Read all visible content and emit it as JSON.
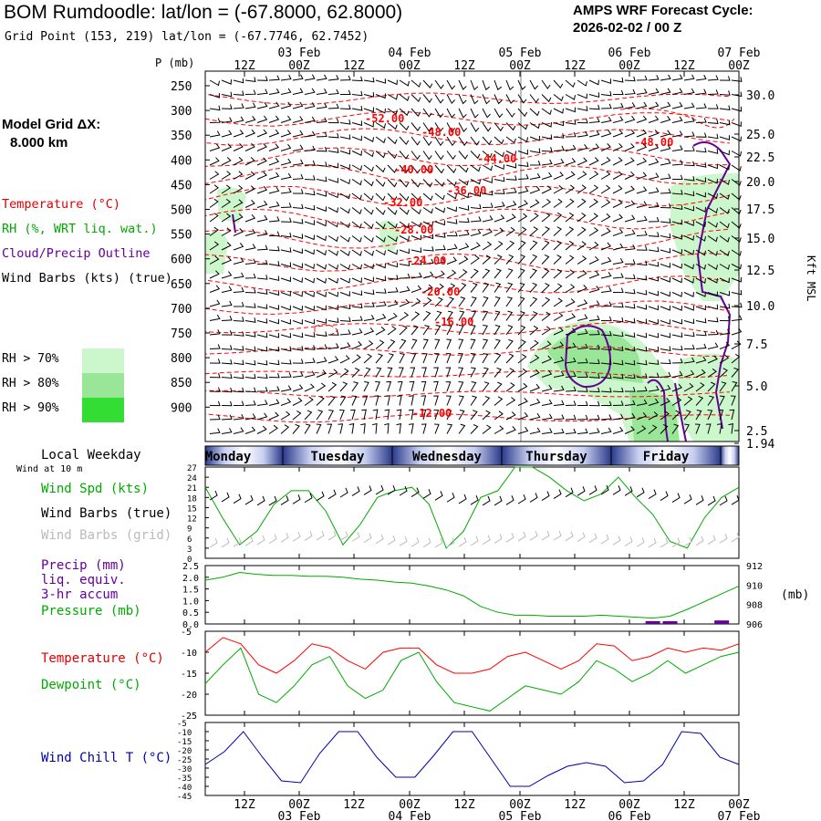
{
  "header": {
    "title": "BOM Rumdoodle:  lat/lon = (-67.8000, 62.8000)",
    "grid_point": "Grid Point (153, 219) lat/lon = (-67.7746, 62.7452)",
    "cycle_line1": "AMPS WRF Forecast Cycle:",
    "cycle_line2": "2026-02-02 / 00  Z"
  },
  "sidebar": {
    "model_grid_line1": "Model Grid ΔX:",
    "model_grid_line2": "8.000 km",
    "legend_temperature": "Temperature (°C)",
    "legend_rh": "RH (%, WRT liq. wat.)",
    "legend_cloud": "Cloud/Precip Outline",
    "legend_wind": "Wind Barbs (kts) (true)",
    "rh_70": "RH > 70%",
    "rh_80": "RH > 80%",
    "rh_90": "RH > 90%",
    "local_weekday": "Local Weekday",
    "wind_at_10m": "Wind at 10 m",
    "wind_spd": "Wind Spd (kts)",
    "wind_barbs_true": "Wind Barbs (true)",
    "wind_barbs_grid": "Wind Barbs (grid)",
    "precip_line1": "Precip (mm)",
    "precip_line2": "liq. equiv.",
    "precip_line3": "3-hr accum",
    "pressure": "Pressure (mb)",
    "temperature": "Temperature (°C)",
    "dewpoint": "Dewpoint (°C)",
    "wind_chill": "Wind Chill T (°C)"
  },
  "colors": {
    "temperature": "#ff0000",
    "rh": "#00aa00",
    "cloud": "#660099",
    "wind_chill": "#0000aa",
    "rh70": "#ccf7cc",
    "rh80": "#99e699",
    "rh90": "#33dd33",
    "grid_barbs": "#bbbbbb",
    "precip": "#660099"
  },
  "chart_data": [
    {
      "type": "line",
      "title": "Time-height cross section",
      "ylabel": "P (mb)",
      "y2label": "Kft MSL",
      "p_ticks": [
        "250",
        "300",
        "350",
        "400",
        "450",
        "500",
        "550",
        "600",
        "650",
        "700",
        "750",
        "800",
        "850",
        "900"
      ],
      "kft_ticks": [
        "30.0",
        "25.0",
        "22.5",
        "20.0",
        "17.5",
        "15.0",
        "12.5",
        "10.0",
        "7.5",
        "5.0",
        "2.5",
        "1.94"
      ],
      "time_ticks": [
        "12Z",
        "00Z",
        "12Z",
        "00Z",
        "12Z",
        "00Z",
        "12Z",
        "00Z",
        "12Z",
        "00Z"
      ],
      "date_ticks": [
        "03 Feb",
        "04 Feb",
        "05 Feb",
        "06 Feb",
        "07 Feb"
      ],
      "temperature_contour_labels": [
        "-52.00",
        "-48.00",
        "-44.00",
        "-40.00",
        "-36.00",
        "-32.00",
        "-28.00",
        "-24.00",
        "-20.00",
        "-16.00",
        "-12.00",
        "-48.00"
      ],
      "weekdays": [
        "Monday",
        "Tuesday",
        "Wednesday",
        "Thursday",
        "Friday"
      ]
    },
    {
      "type": "line",
      "title": "Wind Spd (kts)",
      "yticks": [
        "27",
        "24",
        "21",
        "18",
        "15",
        "12",
        "9",
        "6",
        "3",
        "0"
      ],
      "ylim": [
        0,
        27
      ],
      "series": [
        {
          "name": "Wind Spd",
          "values": [
            21,
            12,
            4,
            8,
            16,
            20,
            20,
            14,
            4,
            10,
            18,
            20,
            21,
            16,
            3,
            8,
            18,
            20,
            27,
            27,
            24,
            20,
            17,
            19,
            24,
            18,
            13,
            5,
            3,
            12,
            18,
            21
          ]
        }
      ]
    },
    {
      "type": "line",
      "title": "Precip / Pressure",
      "yticks": [
        "2.5",
        "2.0",
        "1.5",
        "1.0",
        "0.5",
        "0.0"
      ],
      "y2ticks": [
        "912",
        "910",
        "908",
        "906"
      ],
      "y2label": "(mb)",
      "ylim": [
        0,
        2.5
      ],
      "y2lim": [
        906,
        912
      ],
      "series": [
        {
          "name": "Pressure",
          "values": [
            910.5,
            910.8,
            911.3,
            911.1,
            911.0,
            911.0,
            910.9,
            910.9,
            910.8,
            910.6,
            910.5,
            910.3,
            910.2,
            909.9,
            909.5,
            908.9,
            907.8,
            907.2,
            906.9,
            906.9,
            906.8,
            906.8,
            906.8,
            906.9,
            906.8,
            906.7,
            906.6,
            906.8,
            907.5,
            908.3,
            909.1,
            909.9
          ]
        },
        {
          "name": "Precip",
          "values": [
            0,
            0,
            0,
            0,
            0,
            0,
            0,
            0,
            0,
            0,
            0,
            0,
            0,
            0,
            0,
            0,
            0,
            0,
            0,
            0,
            0,
            0,
            0,
            0,
            0,
            0,
            0.12,
            0.03,
            0,
            0,
            0.15,
            0
          ]
        }
      ]
    },
    {
      "type": "line",
      "title": "Temperature / Dewpoint",
      "yticks": [
        "-5",
        "-10",
        "-15",
        "-20",
        "-25"
      ],
      "ylim": [
        -25,
        -5
      ],
      "series": [
        {
          "name": "Temperature",
          "values": [
            -10,
            -6.5,
            -8,
            -13,
            -15,
            -12,
            -8,
            -9,
            -12,
            -14,
            -10,
            -9,
            -9,
            -13,
            -15,
            -15,
            -14,
            -11,
            -10,
            -12,
            -14,
            -12,
            -8,
            -8.5,
            -12,
            -11,
            -9,
            -10,
            -9,
            -9.5,
            -8
          ]
        },
        {
          "name": "Dewpoint",
          "values": [
            -17.5,
            -13,
            -9,
            -20,
            -22,
            -18,
            -13,
            -11,
            -18,
            -21,
            -19,
            -12,
            -10,
            -17,
            -22,
            -23,
            -24,
            -21,
            -18,
            -19,
            -20,
            -17,
            -12,
            -14,
            -17,
            -15,
            -12,
            -15,
            -13,
            -11,
            -10
          ]
        }
      ]
    },
    {
      "type": "line",
      "title": "Wind Chill T (°C)",
      "yticks": [
        "-5",
        "-10",
        "-15",
        "-20",
        "-25",
        "-30",
        "-35",
        "-40",
        "-45"
      ],
      "ylim": [
        -45,
        -5
      ],
      "series": [
        {
          "name": "Wind Chill",
          "values": [
            -28,
            -21,
            -10,
            -24,
            -37,
            -38,
            -22,
            -10,
            -10,
            -24,
            -35,
            -35,
            -23,
            -10,
            -10,
            -25,
            -40,
            -40,
            -34,
            -29,
            -27,
            -29,
            -38,
            -37,
            -28,
            -10,
            -11,
            -24,
            -28
          ]
        }
      ]
    }
  ]
}
